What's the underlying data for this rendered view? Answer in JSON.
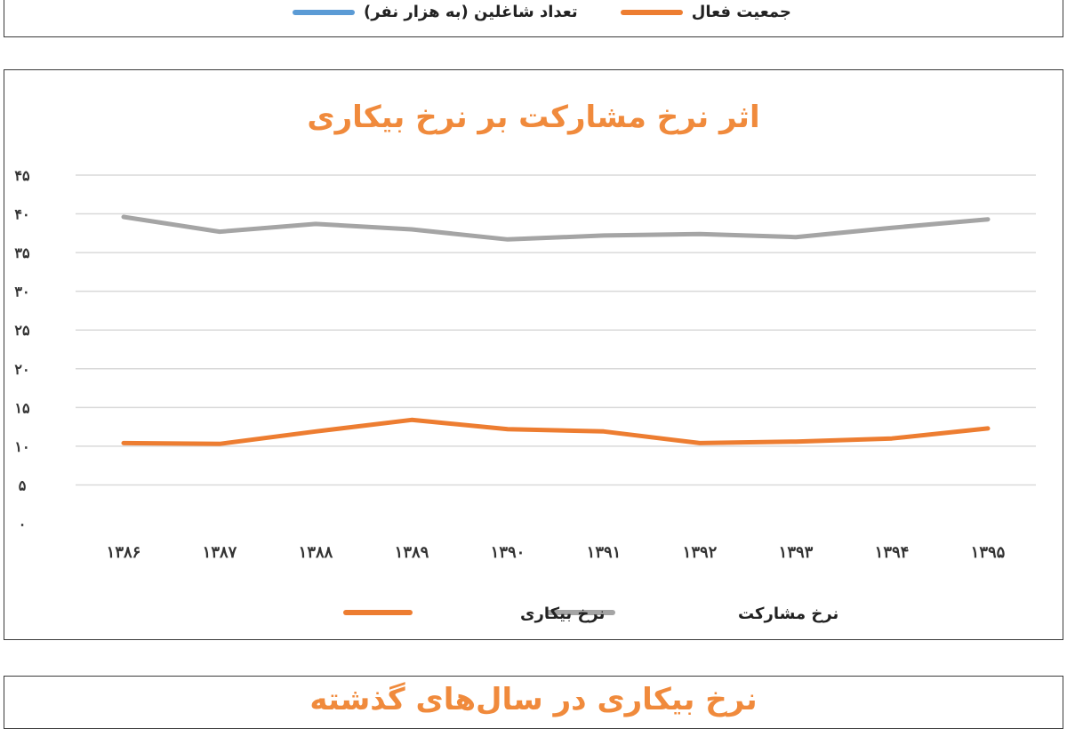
{
  "top_legend": {
    "items": [
      {
        "label": "جمعیت فعال",
        "color": "#ed7d31"
      },
      {
        "label": "تعداد شاغلین (به هزار نفر)",
        "color": "#5b9bd5"
      }
    ]
  },
  "chart_data": {
    "type": "line",
    "title": "اثر نرخ مشارکت بر نرخ بیکاری",
    "xlabel": "",
    "ylabel": "",
    "categories": [
      "۱۳۸۶",
      "۱۳۸۷",
      "۱۳۸۸",
      "۱۳۸۹",
      "۱۳۹۰",
      "۱۳۹۱",
      "۱۳۹۲",
      "۱۳۹۳",
      "۱۳۹۴",
      "۱۳۹۵"
    ],
    "yticks": [
      "۰",
      "۵",
      "۱۰",
      "۱۵",
      "۲۰",
      "۲۵",
      "۳۰",
      "۳۵",
      "۴۰",
      "۴۵"
    ],
    "ylim": [
      0,
      45
    ],
    "grid": true,
    "legend_position": "bottom",
    "series": [
      {
        "name": "نرخ مشارکت",
        "color": "#a5a5a5",
        "values": [
          39.6,
          37.7,
          38.7,
          38.0,
          36.7,
          37.2,
          37.4,
          37.0,
          38.2,
          39.3
        ]
      },
      {
        "name": "نرخ بیکاری",
        "color": "#ed7d31",
        "values": [
          10.4,
          10.3,
          11.9,
          13.4,
          12.2,
          11.9,
          10.4,
          10.6,
          11.0,
          12.3
        ]
      }
    ]
  },
  "bottom_panel": {
    "title_partial": "نرخ بیکاری در سال‌های گذشته"
  }
}
